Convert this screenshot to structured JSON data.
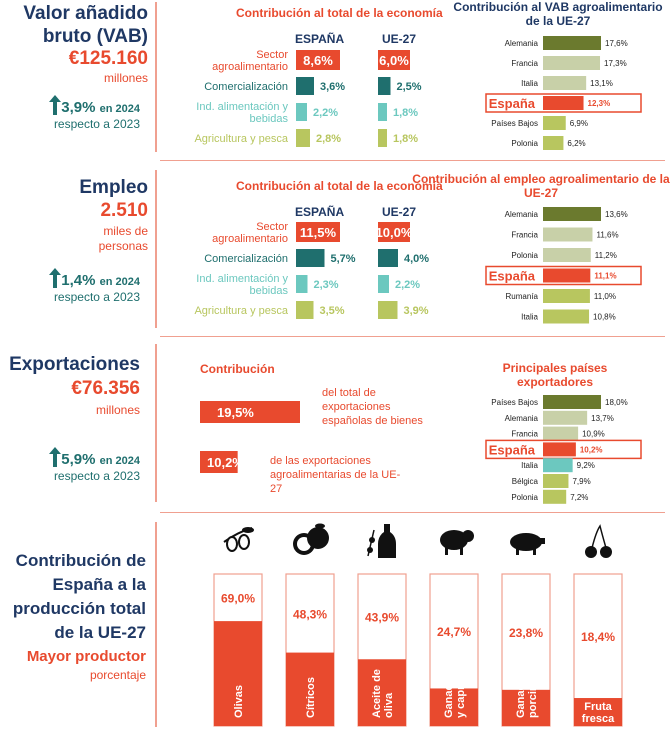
{
  "vab": {
    "title_line1": "Valor añadido",
    "title_line2": "bruto (VAB)",
    "value": "€125.160",
    "unit": "millones",
    "growth": "3,9%",
    "growth_suffix": "en 2024",
    "growth_note": "respecto a 2023",
    "contrib_title": "Contribución al total de la economía",
    "col_es": "ESPAÑA",
    "col_eu": "UE-27",
    "rows": [
      {
        "label": "Sector agroalimentario",
        "es": "8,6%",
        "eu": "6,0%"
      },
      {
        "label": "Comercialización",
        "es": "3,6%",
        "eu": "2,5%"
      },
      {
        "label": "Ind. alimentación y bebidas",
        "es": "2,2%",
        "eu": "1,8%"
      },
      {
        "label": "Agricultura y pesca",
        "es": "2,8%",
        "eu": "1,8%"
      }
    ],
    "ranking_title": "Contribución al VAB agroalimentario de la UE-27",
    "ranking": [
      {
        "country": "Alemania",
        "value": "17,6%"
      },
      {
        "country": "Francia",
        "value": "17,3%"
      },
      {
        "country": "Italia",
        "value": "13,1%"
      },
      {
        "country": "España",
        "value": "12,3%"
      },
      {
        "country": "Países Bajos",
        "value": "6,9%"
      },
      {
        "country": "Polonia",
        "value": "6,2%"
      }
    ]
  },
  "empleo": {
    "title": "Empleo",
    "value": "2.510",
    "unit_line1": "miles de",
    "unit_line2": "personas",
    "growth": "1,4%",
    "growth_suffix": "en 2024",
    "growth_note": "respecto a 2023",
    "contrib_title": "Contribución al total de la economía",
    "col_es": "ESPAÑA",
    "col_eu": "UE-27",
    "rows": [
      {
        "label": "Sector agroalimentario",
        "es": "11,5%",
        "eu": "10,0%"
      },
      {
        "label": "Comercialización",
        "es": "5,7%",
        "eu": "4,0%"
      },
      {
        "label": "Ind. alimentación y bebidas",
        "es": "2,3%",
        "eu": "2,2%"
      },
      {
        "label": "Agricultura y pesca",
        "es": "3,5%",
        "eu": "3,9%"
      }
    ],
    "ranking_title": "Contribución al empleo agroalimentario de la UE-27",
    "ranking": [
      {
        "country": "Alemania",
        "value": "13,6%"
      },
      {
        "country": "Francia",
        "value": "11,6%"
      },
      {
        "country": "Polonia",
        "value": "11,2%"
      },
      {
        "country": "España",
        "value": "11,1%"
      },
      {
        "country": "Rumanía",
        "value": "11,0%"
      },
      {
        "country": "Italia",
        "value": "10,8%"
      }
    ]
  },
  "export": {
    "title": "Exportaciones",
    "value": "€76.356",
    "unit": "millones",
    "growth": "5,9%",
    "growth_suffix": "en 2024",
    "growth_note": "respecto a 2023",
    "contrib_title": "Contribución",
    "bar1_value": "19,5%",
    "bar1_text": "del total de exportaciones españolas de bienes",
    "bar2_value": "10,2%",
    "bar2_text": "de las exportaciones agroalimentarias de la UE-27",
    "ranking_title": "Principales países exportadores",
    "ranking": [
      {
        "country": "Países Bajos",
        "value": "18,0%"
      },
      {
        "country": "Alemania",
        "value": "13,7%"
      },
      {
        "country": "Francia",
        "value": "10,9%"
      },
      {
        "country": "España",
        "value": "10,2%"
      },
      {
        "country": "Italia",
        "value": "9,2%"
      },
      {
        "country": "Bélgica",
        "value": "7,9%"
      },
      {
        "country": "Polonia",
        "value": "7,2%"
      }
    ]
  },
  "produccion": {
    "title_line1": "Contribución de",
    "title_line2": "España a la",
    "title_line3": "producción total",
    "title_line4": "de la UE-27",
    "subtitle": "Mayor productor",
    "unit": "porcentaje",
    "items": [
      {
        "label": "Olivas",
        "value": "69,0%",
        "icon": "olive-icon"
      },
      {
        "label": "Cítricos",
        "value": "48,3%",
        "icon": "orange-icon"
      },
      {
        "label": "Aceite de oliva",
        "value": "43,9%",
        "icon": "olive-oil-bottle-icon"
      },
      {
        "label": "Ganado ovino y caprino",
        "value": "24,7%",
        "icon": "sheep-icon"
      },
      {
        "label": "Ganado porcino",
        "value": "23,8%",
        "icon": "pig-icon"
      },
      {
        "label": "Fruta fresca",
        "value": "18,4%",
        "icon": "cherries-icon"
      }
    ]
  },
  "colors": {
    "navy": "#1f3864",
    "red": "#e84a2e",
    "teal": "#1f6f6e",
    "light_teal": "#6cc8bf",
    "olive": "#b8c65f",
    "dark_olive": "#6b7a2e"
  },
  "chart_data": [
    {
      "type": "bar",
      "categories": [
        "Sector agroalimentario",
        "Comercialización",
        "Ind. alimentación y bebidas",
        "Agricultura y pesca"
      ],
      "series": [
        {
          "name": "ESPAÑA",
          "values": [
            8.6,
            3.6,
            2.2,
            2.8
          ]
        },
        {
          "name": "UE-27",
          "values": [
            6.0,
            2.5,
            1.8,
            1.8
          ]
        }
      ],
      "title": "Contribución al total de la economía"
    },
    {
      "type": "bar",
      "categories": [
        "Alemania",
        "Francia",
        "Italia",
        "España",
        "Países Bajos",
        "Polonia"
      ],
      "values": [
        17.6,
        17.3,
        13.1,
        12.3,
        6.9,
        6.2
      ],
      "title": "Contribución al VAB agroalimentario de la UE-27"
    },
    {
      "type": "bar",
      "categories": [
        "Sector agroalimentario",
        "Comercialización",
        "Ind. alimentación y bebidas",
        "Agricultura y pesca"
      ],
      "series": [
        {
          "name": "ESPAÑA",
          "values": [
            11.5,
            5.7,
            2.3,
            3.5
          ]
        },
        {
          "name": "UE-27",
          "values": [
            10.0,
            4.0,
            2.2,
            3.9
          ]
        }
      ],
      "title": "Contribución al total de la economía"
    },
    {
      "type": "bar",
      "categories": [
        "Alemania",
        "Francia",
        "Polonia",
        "España",
        "Rumanía",
        "Italia"
      ],
      "values": [
        13.6,
        11.6,
        11.2,
        11.1,
        11.0,
        10.8
      ],
      "title": "Contribución al empleo agroalimentario de la UE-27"
    },
    {
      "type": "bar",
      "categories": [
        "del total de exportaciones españolas de bienes",
        "de las exportaciones agroalimentarias de la UE-27"
      ],
      "values": [
        19.5,
        10.2
      ],
      "title": "Contribución"
    },
    {
      "type": "bar",
      "categories": [
        "Países Bajos",
        "Alemania",
        "Francia",
        "España",
        "Italia",
        "Bélgica",
        "Polonia"
      ],
      "values": [
        18.0,
        13.7,
        10.9,
        10.2,
        9.2,
        7.9,
        7.2
      ],
      "title": "Principales países exportadores"
    },
    {
      "type": "bar",
      "categories": [
        "Olivas",
        "Cítricos",
        "Aceite de oliva",
        "Ganado ovino y caprino",
        "Ganado porcino",
        "Fruta fresca"
      ],
      "values": [
        69.0,
        48.3,
        43.9,
        24.7,
        23.8,
        18.4
      ],
      "ylim": [
        0,
        100
      ]
    }
  ]
}
